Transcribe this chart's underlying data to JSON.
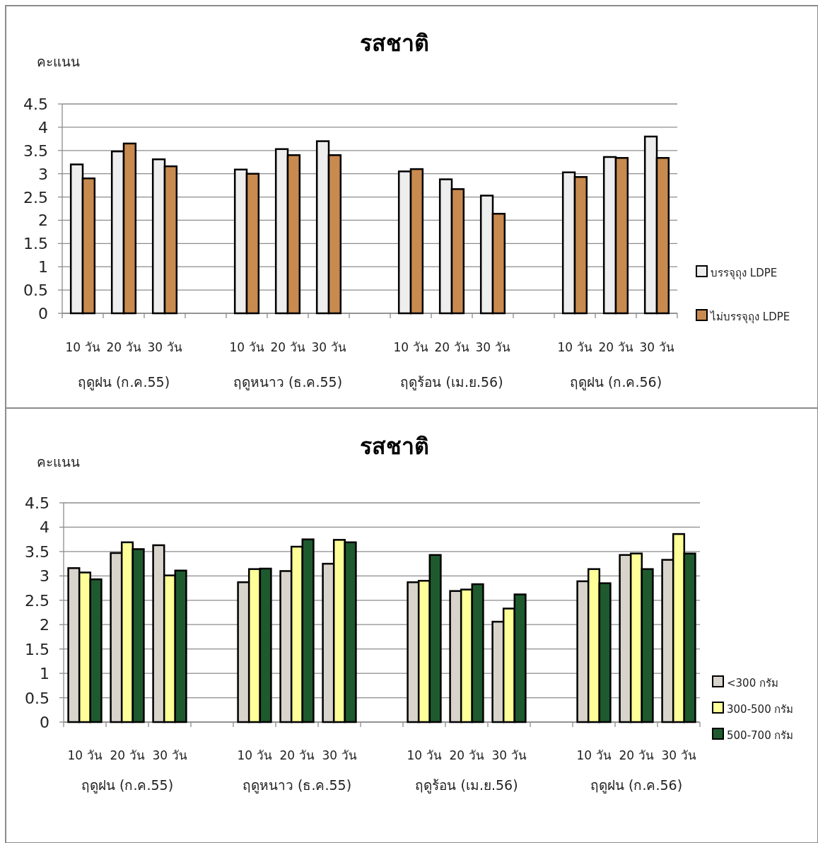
{
  "chart_data": [
    {
      "type": "bar",
      "title": "รสชาติ",
      "ylabel": "คะแนน",
      "categories": [
        "10 วัน",
        "20 วัน",
        "30 วัน",
        null,
        "10 วัน",
        "20 วัน",
        "30 วัน",
        null,
        "10 วัน",
        "20 วัน",
        "30 วัน",
        null,
        "10 วัน",
        "20 วัน",
        "30 วัน"
      ],
      "series": [
        {
          "name": "บรรจุถุง LDPE",
          "color": "#eeeeee",
          "values": [
            3.2,
            3.48,
            3.31,
            null,
            3.09,
            3.53,
            3.7,
            null,
            3.05,
            2.88,
            2.53,
            null,
            3.03,
            3.36,
            3.8
          ]
        },
        {
          "name": "ไม่บรรจุถุง LDPE",
          "color": "#c98a50",
          "values": [
            2.9,
            3.65,
            3.16,
            null,
            3.0,
            3.4,
            3.4,
            null,
            3.1,
            2.67,
            2.14,
            null,
            2.93,
            3.34,
            3.34
          ]
        }
      ],
      "annotations": [
        "ฤดูฝน (ก.ค.55)",
        "ฤดูหนาว (ธ.ค.55)",
        "ฤดูร้อน (เม.ย.56)",
        "ฤดูฝน (ก.ค.56)"
      ],
      "ylim": [
        0,
        4.5
      ],
      "yticks": [
        0,
        0.5,
        1,
        1.5,
        2,
        2.5,
        3,
        3.5,
        4,
        4.5
      ],
      "grid": "y",
      "legend": "right"
    },
    {
      "type": "bar",
      "title": "รสชาติ",
      "ylabel": "คะแนน",
      "categories": [
        "10 วัน",
        "20 วัน",
        "30 วัน",
        null,
        "10 วัน",
        "20 วัน",
        "30 วัน",
        null,
        "10 วัน",
        "20 วัน",
        "30 วัน",
        null,
        "10 วัน",
        "20 วัน",
        "30 วัน"
      ],
      "series": [
        {
          "name": "<300 กรัม",
          "color": "#d8d4cc",
          "values": [
            3.16,
            3.47,
            3.63,
            null,
            2.87,
            3.1,
            3.25,
            null,
            2.87,
            2.69,
            2.06,
            null,
            2.89,
            3.43,
            3.33
          ]
        },
        {
          "name": "300-500 กรัม",
          "color": "#ffff99",
          "values": [
            3.07,
            3.69,
            3.01,
            null,
            3.14,
            3.6,
            3.74,
            null,
            2.9,
            2.72,
            2.33,
            null,
            3.14,
            3.46,
            3.86
          ]
        },
        {
          "name": "500-700 กรัม",
          "color": "#1e5a2e",
          "values": [
            2.93,
            3.55,
            3.11,
            null,
            3.15,
            3.75,
            3.69,
            null,
            3.43,
            2.83,
            2.62,
            null,
            2.85,
            3.14,
            3.46
          ]
        }
      ],
      "annotations": [
        "ฤดูฝน (ก.ค.55)",
        "ฤดูหนาว (ธ.ค.55)",
        "ฤดูร้อน (เม.ย.56)",
        "ฤดูฝน (ก.ค.56)"
      ],
      "ylim": [
        0,
        4.5
      ],
      "yticks": [
        0,
        0.5,
        1,
        1.5,
        2,
        2.5,
        3,
        3.5,
        4,
        4.5
      ],
      "grid": "y",
      "legend": "right"
    }
  ]
}
